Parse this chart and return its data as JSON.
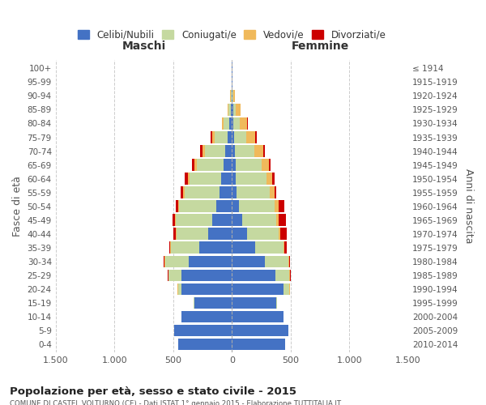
{
  "age_groups": [
    "0-4",
    "5-9",
    "10-14",
    "15-19",
    "20-24",
    "25-29",
    "30-34",
    "35-39",
    "40-44",
    "45-49",
    "50-54",
    "55-59",
    "60-64",
    "65-69",
    "70-74",
    "75-79",
    "80-84",
    "85-89",
    "90-94",
    "95-99",
    "100+"
  ],
  "birth_years": [
    "2010-2014",
    "2005-2009",
    "2000-2004",
    "1995-1999",
    "1990-1994",
    "1985-1989",
    "1980-1984",
    "1975-1979",
    "1970-1974",
    "1965-1969",
    "1960-1964",
    "1955-1959",
    "1950-1954",
    "1945-1949",
    "1940-1944",
    "1935-1939",
    "1930-1934",
    "1925-1929",
    "1920-1924",
    "1915-1919",
    "≤ 1914"
  ],
  "male_celibe": [
    460,
    490,
    430,
    320,
    430,
    430,
    370,
    280,
    200,
    170,
    130,
    105,
    90,
    70,
    55,
    40,
    20,
    10,
    5,
    2,
    2
  ],
  "male_coniugato": [
    0,
    0,
    0,
    5,
    30,
    110,
    200,
    240,
    270,
    310,
    320,
    300,
    270,
    230,
    175,
    110,
    50,
    20,
    5,
    0,
    0
  ],
  "male_vedovo": [
    0,
    0,
    0,
    0,
    1,
    1,
    2,
    3,
    5,
    5,
    8,
    10,
    15,
    20,
    20,
    20,
    15,
    10,
    5,
    0,
    0
  ],
  "male_divorziato": [
    0,
    0,
    0,
    0,
    3,
    5,
    10,
    10,
    20,
    20,
    20,
    20,
    25,
    20,
    20,
    10,
    0,
    0,
    0,
    0,
    0
  ],
  "female_celibe": [
    450,
    480,
    440,
    380,
    440,
    370,
    280,
    200,
    130,
    90,
    60,
    40,
    35,
    30,
    25,
    20,
    15,
    10,
    5,
    3,
    2
  ],
  "female_coniugato": [
    0,
    0,
    0,
    5,
    50,
    120,
    200,
    240,
    270,
    290,
    305,
    285,
    260,
    220,
    165,
    100,
    55,
    20,
    5,
    0,
    0
  ],
  "female_vedovo": [
    0,
    0,
    0,
    1,
    1,
    3,
    5,
    5,
    10,
    20,
    30,
    40,
    50,
    65,
    80,
    80,
    60,
    45,
    15,
    3,
    0
  ],
  "female_divorziato": [
    0,
    0,
    0,
    1,
    3,
    5,
    10,
    20,
    60,
    60,
    50,
    15,
    20,
    15,
    10,
    10,
    3,
    0,
    0,
    0,
    0
  ],
  "colors": {
    "celibe": "#4472C4",
    "coniugato": "#C5D9A0",
    "vedovo": "#F0B95B",
    "divorziato": "#CC0000"
  },
  "legend_labels": [
    "Celibi/Nubili",
    "Coniugati/e",
    "Vedovi/e",
    "Divorziati/e"
  ],
  "title_main": "Popolazione per età, sesso e stato civile - 2015",
  "title_sub": "COMUNE DI CASTEL VOLTURNO (CE) - Dati ISTAT 1° gennaio 2015 - Elaborazione TUTTITALIA.IT",
  "xlabel_left": "Maschi",
  "xlabel_right": "Femmine",
  "ylabel_left": "Fasce di età",
  "ylabel_right": "Anni di nascita",
  "xlim": 1500,
  "xticks": [
    -1500,
    -1000,
    -500,
    0,
    500,
    1000,
    1500
  ],
  "xticklabels": [
    "1.500",
    "1.000",
    "500",
    "0",
    "500",
    "1.000",
    "1.500"
  ],
  "background_color": "#FFFFFF",
  "grid_color": "#CCCCCC",
  "bar_height": 0.85
}
